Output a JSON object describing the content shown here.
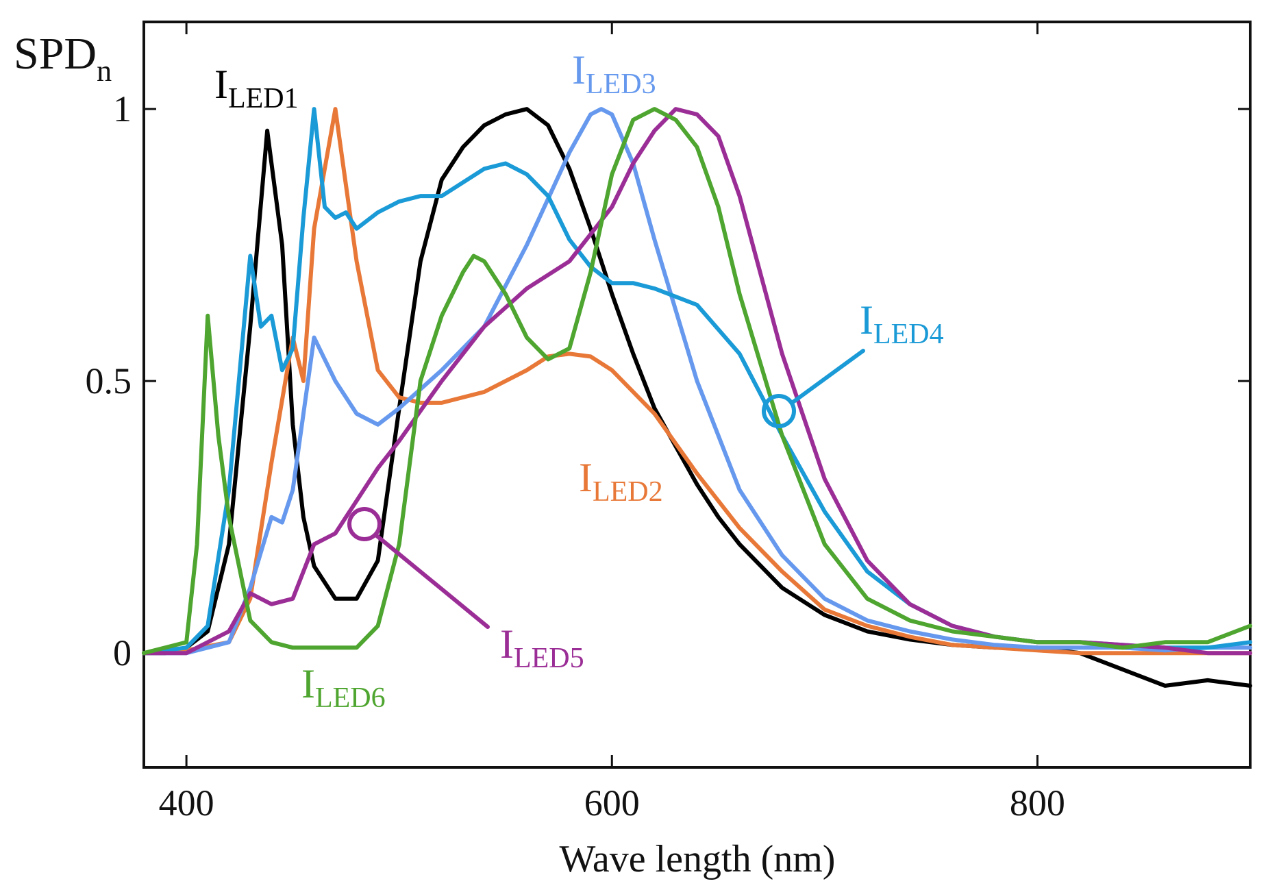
{
  "chart_data": {
    "type": "line",
    "title": "",
    "xlabel": "Wave length (nm)",
    "ylabel": {
      "main": "SPD",
      "sub": "n"
    },
    "xlim": [
      380,
      900
    ],
    "ylim": [
      -0.21,
      1.16
    ],
    "xticks": [
      400,
      600,
      800
    ],
    "yticks": [
      0,
      0.5,
      1
    ],
    "ytick_labels": [
      "0",
      "0.5",
      "1"
    ],
    "grid": false,
    "legend": "inline labels next to each curve",
    "series": [
      {
        "name": "ILED1",
        "label_main": "I",
        "label_sub": "LED1",
        "color": "#000000",
        "x": [
          380,
          390,
          400,
          410,
          420,
          430,
          438,
          445,
          450,
          455,
          460,
          470,
          480,
          490,
          500,
          510,
          520,
          530,
          540,
          550,
          560,
          570,
          580,
          590,
          600,
          610,
          620,
          630,
          640,
          650,
          660,
          680,
          700,
          720,
          740,
          760,
          780,
          800,
          820,
          840,
          860,
          880,
          900
        ],
        "y": [
          0,
          0,
          0.01,
          0.04,
          0.2,
          0.6,
          0.96,
          0.75,
          0.42,
          0.25,
          0.16,
          0.1,
          0.1,
          0.17,
          0.45,
          0.72,
          0.87,
          0.93,
          0.97,
          0.99,
          1.0,
          0.97,
          0.89,
          0.78,
          0.66,
          0.55,
          0.45,
          0.38,
          0.31,
          0.25,
          0.2,
          0.12,
          0.07,
          0.04,
          0.025,
          0.015,
          0.01,
          0.01,
          0.0,
          -0.03,
          -0.06,
          -0.05,
          -0.06
        ]
      },
      {
        "name": "ILED2",
        "label_main": "I",
        "label_sub": "LED2",
        "color": "#e87838",
        "x": [
          380,
          400,
          420,
          430,
          440,
          450,
          455,
          460,
          470,
          475,
          480,
          490,
          500,
          510,
          520,
          540,
          560,
          570,
          580,
          590,
          600,
          620,
          640,
          660,
          680,
          700,
          720,
          740,
          760,
          780,
          800,
          820,
          840,
          860,
          880,
          900
        ],
        "y": [
          0,
          0.005,
          0.02,
          0.1,
          0.35,
          0.58,
          0.5,
          0.78,
          1.0,
          0.86,
          0.72,
          0.52,
          0.47,
          0.46,
          0.46,
          0.48,
          0.52,
          0.545,
          0.55,
          0.545,
          0.52,
          0.44,
          0.33,
          0.23,
          0.15,
          0.08,
          0.05,
          0.03,
          0.015,
          0.01,
          0.005,
          0.0,
          0.0,
          0.0,
          0.0,
          0.0
        ]
      },
      {
        "name": "ILED3",
        "label_main": "I",
        "label_sub": "LED3",
        "color": "#6699ee",
        "x": [
          380,
          400,
          420,
          430,
          440,
          445,
          450,
          460,
          465,
          470,
          480,
          490,
          500,
          520,
          540,
          560,
          580,
          590,
          595,
          600,
          610,
          620,
          640,
          660,
          680,
          700,
          720,
          740,
          760,
          780,
          800,
          820,
          840,
          860,
          880,
          900
        ],
        "y": [
          0,
          0.0,
          0.02,
          0.12,
          0.25,
          0.24,
          0.3,
          0.58,
          0.54,
          0.5,
          0.44,
          0.42,
          0.45,
          0.52,
          0.6,
          0.75,
          0.92,
          0.99,
          1.0,
          0.99,
          0.9,
          0.76,
          0.5,
          0.3,
          0.18,
          0.1,
          0.06,
          0.04,
          0.025,
          0.015,
          0.01,
          0.01,
          0.01,
          0.005,
          0.01,
          0.01
        ]
      },
      {
        "name": "ILED4",
        "label_main": "I",
        "label_sub": "LED4",
        "color": "#1a9ad6",
        "x": [
          380,
          400,
          410,
          420,
          430,
          435,
          440,
          445,
          450,
          455,
          460,
          465,
          470,
          475,
          480,
          490,
          500,
          510,
          520,
          540,
          550,
          560,
          570,
          580,
          590,
          600,
          610,
          620,
          640,
          660,
          680,
          700,
          720,
          740,
          760,
          780,
          800,
          820,
          840,
          860,
          880,
          900
        ],
        "y": [
          0,
          0.01,
          0.05,
          0.3,
          0.73,
          0.6,
          0.62,
          0.52,
          0.56,
          0.8,
          1.0,
          0.82,
          0.8,
          0.81,
          0.78,
          0.81,
          0.83,
          0.84,
          0.84,
          0.89,
          0.9,
          0.88,
          0.84,
          0.76,
          0.71,
          0.68,
          0.68,
          0.67,
          0.64,
          0.55,
          0.4,
          0.26,
          0.15,
          0.09,
          0.05,
          0.03,
          0.02,
          0.02,
          0.015,
          0.01,
          0.01,
          0.02
        ]
      },
      {
        "name": "ILED5",
        "label_main": "I",
        "label_sub": "LED5",
        "color": "#9b2e96",
        "x": [
          380,
          400,
          420,
          430,
          440,
          450,
          460,
          470,
          480,
          490,
          500,
          520,
          540,
          560,
          580,
          600,
          610,
          620,
          630,
          640,
          650,
          660,
          680,
          700,
          720,
          740,
          760,
          780,
          800,
          820,
          840,
          860,
          880,
          900
        ],
        "y": [
          0,
          0.0,
          0.04,
          0.11,
          0.09,
          0.1,
          0.2,
          0.22,
          0.28,
          0.34,
          0.39,
          0.5,
          0.6,
          0.67,
          0.72,
          0.82,
          0.9,
          0.96,
          1.0,
          0.99,
          0.95,
          0.84,
          0.55,
          0.32,
          0.17,
          0.09,
          0.05,
          0.03,
          0.02,
          0.02,
          0.015,
          0.01,
          0.0,
          0.0
        ]
      },
      {
        "name": "ILED6",
        "label_main": "I",
        "label_sub": "LED6",
        "color": "#4ea52f",
        "x": [
          380,
          400,
          405,
          410,
          415,
          420,
          430,
          440,
          450,
          460,
          470,
          480,
          490,
          500,
          510,
          520,
          530,
          535,
          540,
          550,
          560,
          570,
          580,
          590,
          600,
          610,
          620,
          630,
          640,
          650,
          660,
          680,
          700,
          720,
          740,
          760,
          780,
          800,
          820,
          840,
          860,
          880,
          900
        ],
        "y": [
          0,
          0.02,
          0.2,
          0.62,
          0.4,
          0.25,
          0.06,
          0.02,
          0.01,
          0.01,
          0.01,
          0.01,
          0.05,
          0.2,
          0.5,
          0.62,
          0.7,
          0.73,
          0.72,
          0.66,
          0.58,
          0.54,
          0.56,
          0.7,
          0.88,
          0.98,
          1.0,
          0.98,
          0.93,
          0.82,
          0.66,
          0.4,
          0.2,
          0.1,
          0.06,
          0.04,
          0.03,
          0.02,
          0.02,
          0.01,
          0.02,
          0.02,
          0.05
        ]
      }
    ]
  }
}
